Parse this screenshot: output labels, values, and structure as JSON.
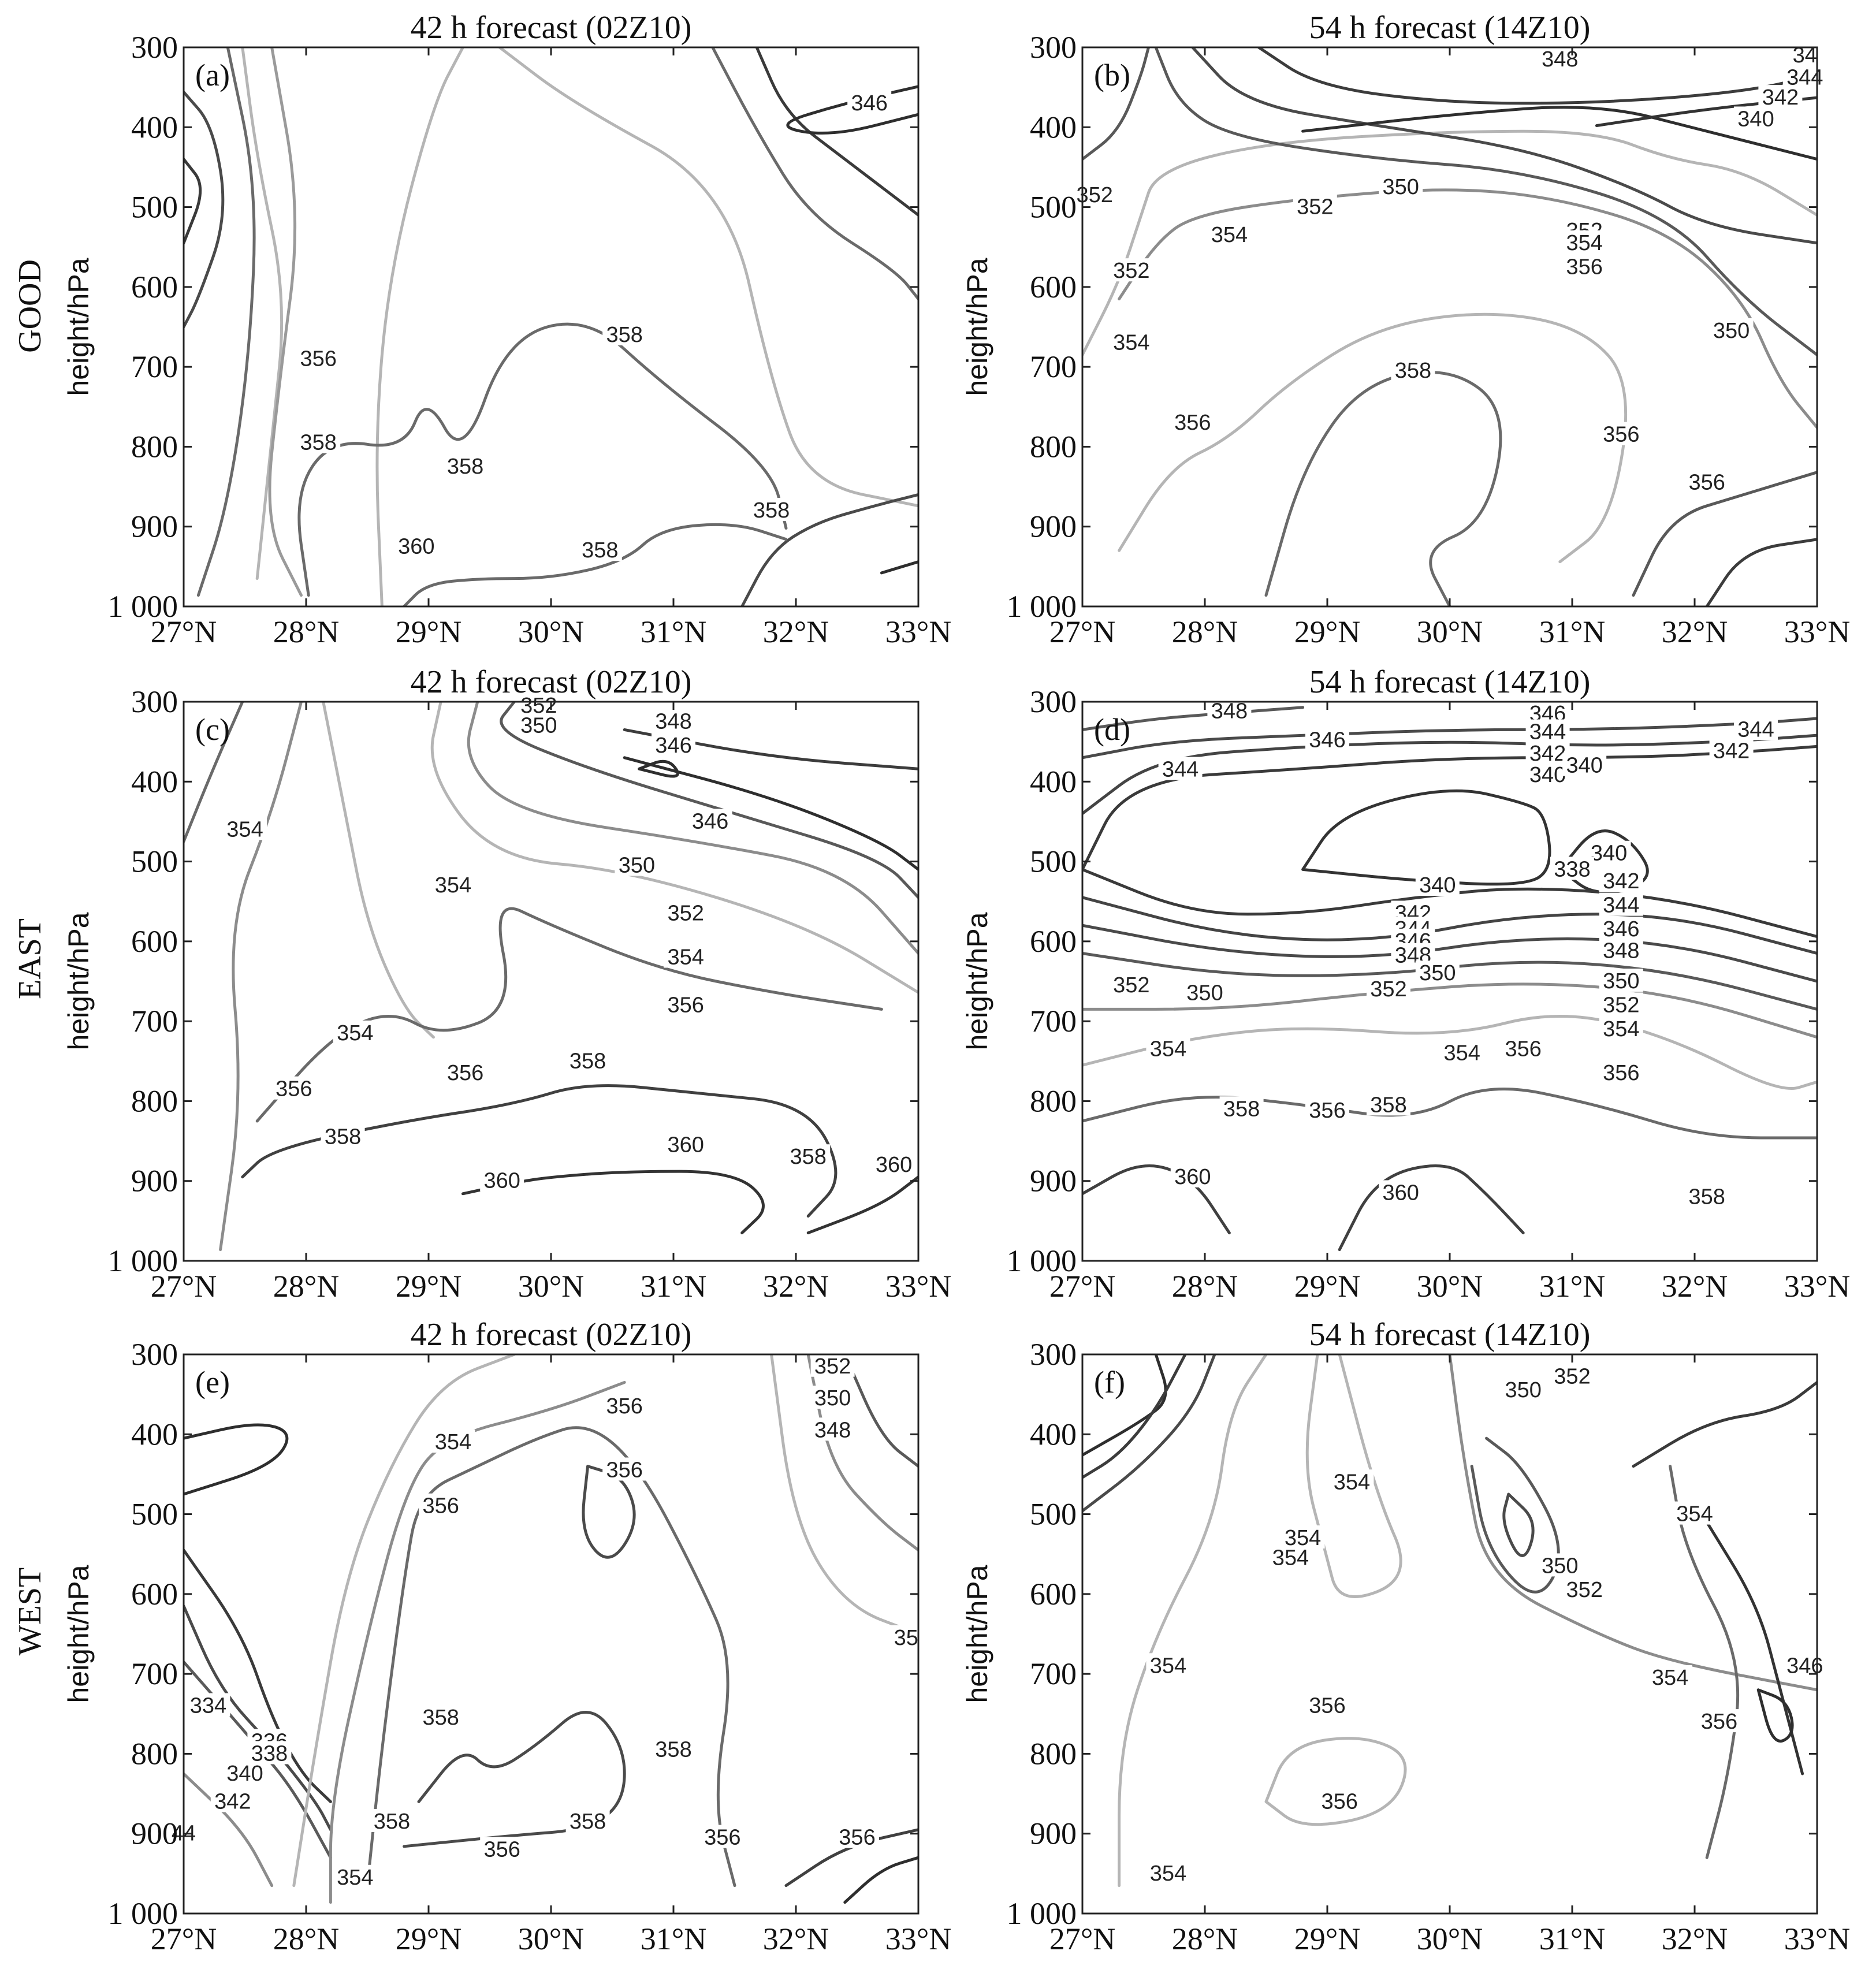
{
  "figure": {
    "row_labels": [
      "GOOD",
      "EAST",
      "WEST"
    ],
    "y_axis_label": "height/hPa",
    "y_ticks": [
      "300",
      "400",
      "500",
      "600",
      "700",
      "800",
      "900",
      "1 000"
    ],
    "x_ticks": [
      "27°N",
      "28°N",
      "29°N",
      "30°N",
      "31°N",
      "32°N",
      "33°N"
    ],
    "contour_colors": {
      "346": "#2e2e2e",
      "348": "#3c3c3c",
      "350": "#4a4a4a",
      "352": "#595959",
      "354": "#8c8c8c",
      "356": "#b0b0b0",
      "358": "#6a6a6a",
      "360": "#404040",
      "340": "#333333",
      "342": "#3a3a3a",
      "344": "#444444",
      "334": "#3a3a3a",
      "336": "#4a4a4a",
      "338": "#5a5a5a"
    }
  },
  "chart_data": [
    {
      "type": "contour",
      "tag": "(a)",
      "title": "42 h forecast (02Z10)",
      "row": "GOOD",
      "ylabel": "height/hPa",
      "ylim": [
        1000,
        300
      ],
      "xlim": [
        27,
        33
      ],
      "contour_labels": [
        {
          "value": "346",
          "x": 32.6,
          "p": 370
        },
        {
          "value": "356",
          "x": 28.1,
          "p": 690
        },
        {
          "value": "358",
          "x": 28.1,
          "p": 795
        },
        {
          "value": "358",
          "x": 30.6,
          "p": 660
        },
        {
          "value": "358",
          "x": 29.3,
          "p": 825
        },
        {
          "value": "358",
          "x": 31.8,
          "p": 880
        },
        {
          "value": "358",
          "x": 30.4,
          "p": 930
        },
        {
          "value": "360",
          "x": 28.9,
          "p": 925
        }
      ]
    },
    {
      "type": "contour",
      "tag": "(b)",
      "title": "54 h forecast (14Z10)",
      "row": "GOOD",
      "ylabel": "height/hPa",
      "ylim": [
        1000,
        300
      ],
      "xlim": [
        27,
        33
      ],
      "contour_labels": [
        {
          "value": "348",
          "x": 30.9,
          "p": 315
        },
        {
          "value": "34",
          "x": 32.9,
          "p": 310
        },
        {
          "value": "344",
          "x": 32.9,
          "p": 338
        },
        {
          "value": "342",
          "x": 32.7,
          "p": 363
        },
        {
          "value": "340",
          "x": 32.5,
          "p": 390
        },
        {
          "value": "352",
          "x": 27.1,
          "p": 485
        },
        {
          "value": "350",
          "x": 29.6,
          "p": 475
        },
        {
          "value": "352",
          "x": 28.9,
          "p": 500
        },
        {
          "value": "352",
          "x": 31.1,
          "p": 530
        },
        {
          "value": "354",
          "x": 31.1,
          "p": 545
        },
        {
          "value": "354",
          "x": 28.2,
          "p": 535
        },
        {
          "value": "356",
          "x": 31.1,
          "p": 575
        },
        {
          "value": "352",
          "x": 27.4,
          "p": 580
        },
        {
          "value": "354",
          "x": 27.4,
          "p": 670
        },
        {
          "value": "350",
          "x": 32.3,
          "p": 655
        },
        {
          "value": "358",
          "x": 29.7,
          "p": 705
        },
        {
          "value": "356",
          "x": 27.9,
          "p": 770
        },
        {
          "value": "356",
          "x": 31.4,
          "p": 785
        },
        {
          "value": "356",
          "x": 32.1,
          "p": 845
        }
      ]
    },
    {
      "type": "contour",
      "tag": "(c)",
      "title": "42 h forecast (02Z10)",
      "row": "EAST",
      "ylabel": "height/hPa",
      "ylim": [
        1000,
        300
      ],
      "xlim": [
        27,
        33
      ],
      "contour_labels": [
        {
          "value": "352",
          "x": 29.9,
          "p": 305
        },
        {
          "value": "350",
          "x": 29.9,
          "p": 330
        },
        {
          "value": "348",
          "x": 31.0,
          "p": 325
        },
        {
          "value": "346",
          "x": 31.0,
          "p": 355
        },
        {
          "value": "354",
          "x": 27.5,
          "p": 460
        },
        {
          "value": "346",
          "x": 31.3,
          "p": 450
        },
        {
          "value": "350",
          "x": 30.7,
          "p": 505
        },
        {
          "value": "354",
          "x": 29.2,
          "p": 530
        },
        {
          "value": "352",
          "x": 31.1,
          "p": 565
        },
        {
          "value": "354",
          "x": 31.1,
          "p": 620
        },
        {
          "value": "356",
          "x": 31.1,
          "p": 680
        },
        {
          "value": "354",
          "x": 28.4,
          "p": 715
        },
        {
          "value": "358",
          "x": 30.3,
          "p": 750
        },
        {
          "value": "356",
          "x": 29.3,
          "p": 765
        },
        {
          "value": "356",
          "x": 27.9,
          "p": 785
        },
        {
          "value": "358",
          "x": 28.3,
          "p": 845
        },
        {
          "value": "360",
          "x": 31.1,
          "p": 855
        },
        {
          "value": "360",
          "x": 29.6,
          "p": 900
        },
        {
          "value": "358",
          "x": 32.1,
          "p": 870
        },
        {
          "value": "360",
          "x": 32.8,
          "p": 880
        }
      ]
    },
    {
      "type": "contour",
      "tag": "(d)",
      "title": "54 h forecast (14Z10)",
      "row": "EAST",
      "ylabel": "height/hPa",
      "ylim": [
        1000,
        300
      ],
      "xlim": [
        27,
        33
      ],
      "contour_labels": [
        {
          "value": "348",
          "x": 28.2,
          "p": 312
        },
        {
          "value": "346",
          "x": 30.8,
          "p": 315
        },
        {
          "value": "344",
          "x": 30.8,
          "p": 338
        },
        {
          "value": "346",
          "x": 29.0,
          "p": 348
        },
        {
          "value": "344",
          "x": 32.5,
          "p": 335
        },
        {
          "value": "342",
          "x": 30.8,
          "p": 365
        },
        {
          "value": "342",
          "x": 32.3,
          "p": 362
        },
        {
          "value": "344",
          "x": 27.8,
          "p": 385
        },
        {
          "value": "340",
          "x": 30.8,
          "p": 392
        },
        {
          "value": "340",
          "x": 31.1,
          "p": 380
        },
        {
          "value": "340",
          "x": 31.3,
          "p": 490
        },
        {
          "value": "338",
          "x": 31.0,
          "p": 510
        },
        {
          "value": "340",
          "x": 29.9,
          "p": 530
        },
        {
          "value": "342",
          "x": 31.4,
          "p": 525
        },
        {
          "value": "342",
          "x": 29.7,
          "p": 565
        },
        {
          "value": "344",
          "x": 31.4,
          "p": 555
        },
        {
          "value": "344",
          "x": 29.7,
          "p": 585
        },
        {
          "value": "346",
          "x": 31.4,
          "p": 585
        },
        {
          "value": "346",
          "x": 29.7,
          "p": 600
        },
        {
          "value": "348",
          "x": 31.4,
          "p": 612
        },
        {
          "value": "348",
          "x": 29.7,
          "p": 618
        },
        {
          "value": "350",
          "x": 29.9,
          "p": 640
        },
        {
          "value": "350",
          "x": 31.4,
          "p": 650
        },
        {
          "value": "352",
          "x": 27.4,
          "p": 655
        },
        {
          "value": "350",
          "x": 28.0,
          "p": 665
        },
        {
          "value": "352",
          "x": 29.5,
          "p": 660
        },
        {
          "value": "352",
          "x": 31.4,
          "p": 680
        },
        {
          "value": "354",
          "x": 31.4,
          "p": 710
        },
        {
          "value": "354",
          "x": 27.7,
          "p": 735
        },
        {
          "value": "354",
          "x": 30.1,
          "p": 740
        },
        {
          "value": "356",
          "x": 30.6,
          "p": 735
        },
        {
          "value": "356",
          "x": 31.4,
          "p": 765
        },
        {
          "value": "358",
          "x": 28.3,
          "p": 810
        },
        {
          "value": "356",
          "x": 29.0,
          "p": 812
        },
        {
          "value": "358",
          "x": 29.5,
          "p": 805
        },
        {
          "value": "360",
          "x": 27.9,
          "p": 895
        },
        {
          "value": "360",
          "x": 29.6,
          "p": 915
        },
        {
          "value": "358",
          "x": 32.1,
          "p": 920
        }
      ]
    },
    {
      "type": "contour",
      "tag": "(e)",
      "title": "42 h forecast (02Z10)",
      "row": "WEST",
      "ylabel": "height/hPa",
      "ylim": [
        1000,
        300
      ],
      "xlim": [
        27,
        33
      ],
      "contour_labels": [
        {
          "value": "352",
          "x": 32.3,
          "p": 315
        },
        {
          "value": "350",
          "x": 32.3,
          "p": 355
        },
        {
          "value": "348",
          "x": 32.3,
          "p": 395
        },
        {
          "value": "356",
          "x": 30.6,
          "p": 365
        },
        {
          "value": "354",
          "x": 29.2,
          "p": 410
        },
        {
          "value": "356",
          "x": 30.6,
          "p": 445
        },
        {
          "value": "356",
          "x": 29.1,
          "p": 490
        },
        {
          "value": "35",
          "x": 32.9,
          "p": 655
        },
        {
          "value": "334",
          "x": 27.2,
          "p": 740
        },
        {
          "value": "358",
          "x": 29.1,
          "p": 755
        },
        {
          "value": "358",
          "x": 31.0,
          "p": 795
        },
        {
          "value": "336",
          "x": 27.7,
          "p": 785
        },
        {
          "value": "338",
          "x": 27.7,
          "p": 800
        },
        {
          "value": "340",
          "x": 27.5,
          "p": 825
        },
        {
          "value": "342",
          "x": 27.4,
          "p": 860
        },
        {
          "value": "44",
          "x": 27.0,
          "p": 900
        },
        {
          "value": "358",
          "x": 28.7,
          "p": 885
        },
        {
          "value": "358",
          "x": 30.3,
          "p": 885
        },
        {
          "value": "356",
          "x": 31.4,
          "p": 905
        },
        {
          "value": "356",
          "x": 32.5,
          "p": 905
        },
        {
          "value": "356",
          "x": 29.6,
          "p": 920
        },
        {
          "value": "354",
          "x": 28.4,
          "p": 955
        }
      ]
    },
    {
      "type": "contour",
      "tag": "(f)",
      "title": "54 h forecast (14Z10)",
      "row": "WEST",
      "ylabel": "height/hPa",
      "ylim": [
        1000,
        300
      ],
      "xlim": [
        27,
        33
      ],
      "contour_labels": [
        {
          "value": "350",
          "x": 30.6,
          "p": 345
        },
        {
          "value": "352",
          "x": 31.0,
          "p": 328
        },
        {
          "value": "354",
          "x": 29.2,
          "p": 460
        },
        {
          "value": "354",
          "x": 32.0,
          "p": 500
        },
        {
          "value": "354",
          "x": 28.8,
          "p": 530
        },
        {
          "value": "354",
          "x": 28.7,
          "p": 555
        },
        {
          "value": "350",
          "x": 30.9,
          "p": 565
        },
        {
          "value": "352",
          "x": 31.1,
          "p": 595
        },
        {
          "value": "354",
          "x": 27.7,
          "p": 690
        },
        {
          "value": "346",
          "x": 32.9,
          "p": 690
        },
        {
          "value": "354",
          "x": 31.8,
          "p": 705
        },
        {
          "value": "356",
          "x": 29.0,
          "p": 740
        },
        {
          "value": "356",
          "x": 32.2,
          "p": 760
        },
        {
          "value": "356",
          "x": 29.1,
          "p": 860
        },
        {
          "value": "354",
          "x": 27.7,
          "p": 950
        }
      ]
    }
  ]
}
